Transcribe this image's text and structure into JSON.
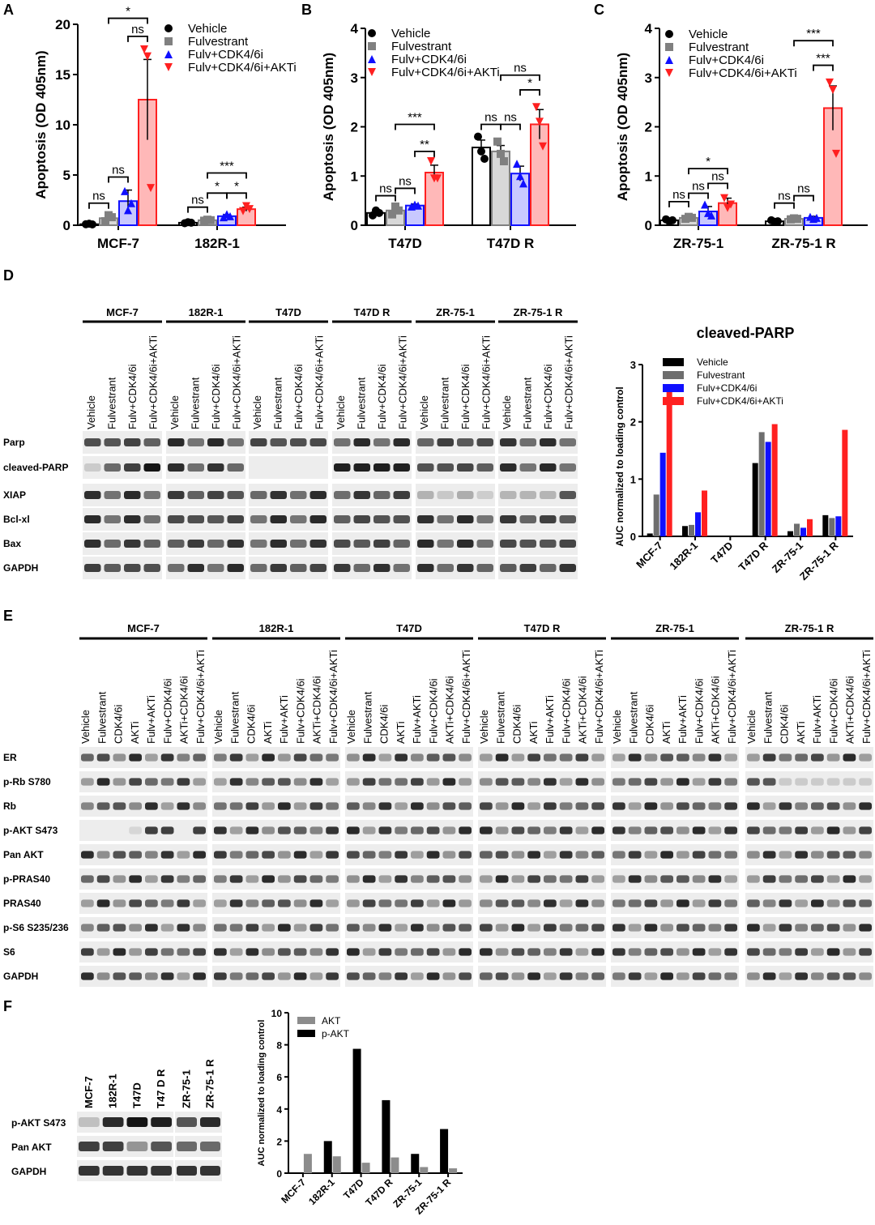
{
  "colors": {
    "vehicle": "#000000",
    "fulvestrant": "#808080",
    "cdk": "#1010ff",
    "akti": "#ff2020",
    "vehicle_fill": "#ffffff",
    "fulv_fill": "#d8d8d8",
    "cdk_fill": "#c8c8ff",
    "akti_fill": "#ffb8b8",
    "akt_gray": "#8c8c8c",
    "pakt_black": "#000000"
  },
  "panel_letters": {
    "A": "A",
    "B": "B",
    "C": "C",
    "D": "D",
    "E": "E",
    "F": "F"
  },
  "chart_data": [
    {
      "id": "A",
      "type": "bar",
      "ylabel": "Apoptosis (OD 405nm)",
      "ylim": [
        0,
        20
      ],
      "yticks": [
        0,
        5,
        10,
        15,
        20
      ],
      "categories": [
        "MCF-7",
        "182R-1"
      ],
      "legend": [
        "Vehicle",
        "Fulvestrant",
        "Fulv+CDK4/6i",
        "Fulv+CDK4/6i+AKTi"
      ],
      "series": [
        {
          "name": "Vehicle",
          "values": [
            0.1,
            0.25
          ],
          "err": [
            0.05,
            0.05
          ],
          "points": [
            [
              0.1,
              0.15,
              0.08
            ],
            [
              0.2,
              0.3,
              0.25
            ]
          ]
        },
        {
          "name": "Fulvestrant",
          "values": [
            0.7,
            0.5
          ],
          "err": [
            0.3,
            0.05
          ],
          "points": [
            [
              0.4,
              1.0,
              0.8
            ],
            [
              0.45,
              0.55,
              0.5
            ]
          ]
        },
        {
          "name": "Fulv+CDK4/6i",
          "values": [
            2.4,
            0.9
          ],
          "err": [
            1.1,
            0.15
          ],
          "points": [
            [
              3.4,
              1.5,
              2.2
            ],
            [
              0.8,
              1.1,
              0.9
            ]
          ]
        },
        {
          "name": "Fulv+CDK4/6i+AKTi",
          "values": [
            12.5,
            1.6
          ],
          "err": [
            4.0,
            0.2
          ],
          "points": [
            [
              17.5,
              16.8,
              3.7
            ],
            [
              1.4,
              1.9,
              1.6
            ]
          ]
        }
      ],
      "annotations": [
        {
          "group": 0,
          "from": 0,
          "to": 1,
          "label": "ns",
          "y": 2.2
        },
        {
          "group": 0,
          "from": 1,
          "to": 2,
          "label": "ns",
          "y": 4.8
        },
        {
          "group": 0,
          "from": 2,
          "to": 3,
          "label": "ns",
          "y": 18.8
        },
        {
          "group": 0,
          "from": 1,
          "to": 3,
          "label": "*",
          "y": 20.6
        },
        {
          "group": 1,
          "from": 0,
          "to": 1,
          "label": "ns",
          "y": 1.8
        },
        {
          "group": 1,
          "from": 1,
          "to": 2,
          "label": "*",
          "y": 3.2
        },
        {
          "group": 1,
          "from": 2,
          "to": 3,
          "label": "*",
          "y": 3.2
        },
        {
          "group": 1,
          "from": 1,
          "to": 3,
          "label": "***",
          "y": 5.2
        }
      ]
    },
    {
      "id": "B",
      "type": "bar",
      "ylabel": "Apoptosis (OD 405nm)",
      "ylim": [
        0,
        4
      ],
      "yticks": [
        0,
        1,
        2,
        3,
        4
      ],
      "categories": [
        "T47D",
        "T47D R"
      ],
      "legend": [
        "Vehicle",
        "Fulvestrant",
        "Fulv+CDK4/6i",
        "Fulv+CDK4/6i+AKTi"
      ],
      "series": [
        {
          "name": "Vehicle",
          "values": [
            0.25,
            1.58
          ],
          "err": [
            0.05,
            0.15
          ],
          "points": [
            [
              0.2,
              0.3,
              0.25
            ],
            [
              1.8,
              1.5,
              1.35
            ]
          ]
        },
        {
          "name": "Fulvestrant",
          "values": [
            0.3,
            1.5
          ],
          "err": [
            0.08,
            0.12
          ],
          "points": [
            [
              0.22,
              0.38,
              0.3
            ],
            [
              1.7,
              1.45,
              1.3
            ]
          ]
        },
        {
          "name": "Fulv+CDK4/6i",
          "values": [
            0.4,
            1.05
          ],
          "err": [
            0.03,
            0.15
          ],
          "points": [
            [
              0.38,
              0.42,
              0.4
            ],
            [
              1.25,
              1.0,
              0.85
            ]
          ]
        },
        {
          "name": "Fulv+CDK4/6i+AKTi",
          "values": [
            1.07,
            2.05
          ],
          "err": [
            0.15,
            0.3
          ],
          "points": [
            [
              1.3,
              0.95,
              0.95
            ],
            [
              2.4,
              2.1,
              1.6
            ]
          ]
        }
      ],
      "annotations": [
        {
          "group": 0,
          "from": 0,
          "to": 1,
          "label": "ns",
          "y": 0.6
        },
        {
          "group": 0,
          "from": 1,
          "to": 2,
          "label": "ns",
          "y": 0.75
        },
        {
          "group": 0,
          "from": 2,
          "to": 3,
          "label": "**",
          "y": 1.5
        },
        {
          "group": 0,
          "from": 1,
          "to": 3,
          "label": "***",
          "y": 2.05
        },
        {
          "group": 1,
          "from": 0,
          "to": 1,
          "label": "ns",
          "y": 2.05
        },
        {
          "group": 1,
          "from": 1,
          "to": 2,
          "label": "ns",
          "y": 2.05
        },
        {
          "group": 1,
          "from": 2,
          "to": 3,
          "label": "*",
          "y": 2.75
        },
        {
          "group": 1,
          "from": 1,
          "to": 3,
          "label": "ns",
          "y": 3.05
        }
      ]
    },
    {
      "id": "C",
      "type": "bar",
      "ylabel": "Apoptosis (OD 405nm)",
      "ylim": [
        0,
        4
      ],
      "yticks": [
        0,
        1,
        2,
        3,
        4
      ],
      "categories": [
        "ZR-75-1",
        "ZR-75-1 R"
      ],
      "legend": [
        "Vehicle",
        "Fulvestrant",
        "Fulv+CDK4/6i",
        "Fulv+CDK4/6i+AKTi"
      ],
      "series": [
        {
          "name": "Vehicle",
          "values": [
            0.1,
            0.08
          ],
          "err": [
            0.03,
            0.02
          ],
          "points": [
            [
              0.12,
              0.08,
              0.1
            ],
            [
              0.1,
              0.07,
              0.08
            ]
          ]
        },
        {
          "name": "Fulvestrant",
          "values": [
            0.15,
            0.13
          ],
          "err": [
            0.03,
            0.02
          ],
          "points": [
            [
              0.13,
              0.17,
              0.15
            ],
            [
              0.12,
              0.14,
              0.13
            ]
          ]
        },
        {
          "name": "Fulv+CDK4/6i",
          "values": [
            0.28,
            0.15
          ],
          "err": [
            0.1,
            0.03
          ],
          "points": [
            [
              0.42,
              0.25,
              0.2
            ],
            [
              0.17,
              0.13,
              0.15
            ]
          ]
        },
        {
          "name": "Fulv+CDK4/6i+AKTi",
          "values": [
            0.45,
            2.38
          ],
          "err": [
            0.1,
            0.45
          ],
          "points": [
            [
              0.55,
              0.35,
              0.42
            ],
            [
              2.9,
              2.75,
              1.45
            ]
          ]
        }
      ],
      "annotations": [
        {
          "group": 0,
          "from": 0,
          "to": 1,
          "label": "ns",
          "y": 0.48
        },
        {
          "group": 0,
          "from": 1,
          "to": 2,
          "label": "ns",
          "y": 0.65
        },
        {
          "group": 0,
          "from": 2,
          "to": 3,
          "label": "ns",
          "y": 0.85
        },
        {
          "group": 0,
          "from": 1,
          "to": 3,
          "label": "*",
          "y": 1.15
        },
        {
          "group": 1,
          "from": 0,
          "to": 1,
          "label": "ns",
          "y": 0.45
        },
        {
          "group": 1,
          "from": 1,
          "to": 2,
          "label": "ns",
          "y": 0.6
        },
        {
          "group": 1,
          "from": 2,
          "to": 3,
          "label": "***",
          "y": 3.25
        },
        {
          "group": 1,
          "from": 1,
          "to": 3,
          "label": "***",
          "y": 3.75
        }
      ]
    },
    {
      "id": "D-chart",
      "type": "bar",
      "title": "cleaved-PARP",
      "ylabel": "AUC normalized to loading control",
      "ylim": [
        0,
        3
      ],
      "yticks": [
        0,
        1,
        2,
        3
      ],
      "categories": [
        "MCF-7",
        "182R-1",
        "T47D",
        "T47D R",
        "ZR-75-1",
        "ZR-75-1 R"
      ],
      "series": [
        {
          "name": "Vehicle",
          "values": [
            0.05,
            0.18,
            0,
            1.28,
            0.09,
            0.37
          ]
        },
        {
          "name": "Fulvestrant",
          "values": [
            0.73,
            0.2,
            0,
            1.82,
            0.22,
            0.32
          ]
        },
        {
          "name": "Fulv+CDK4/6i",
          "values": [
            1.46,
            0.42,
            0,
            1.65,
            0.15,
            0.35
          ]
        },
        {
          "name": "Fulv+CDK4/6i+AKTi",
          "values": [
            2.61,
            0.8,
            0,
            1.96,
            0.3,
            1.86
          ]
        }
      ]
    },
    {
      "id": "F-chart",
      "type": "bar",
      "ylabel": "AUC normalized to loading control",
      "ylim": [
        0,
        10
      ],
      "yticks": [
        0,
        2,
        4,
        6,
        8,
        10
      ],
      "categories": [
        "MCF-7",
        "182R-1",
        "T47D",
        "T47D R",
        "ZR-75-1",
        "ZR-75-1 R"
      ],
      "series": [
        {
          "name": "p-AKT",
          "values": [
            0,
            2.0,
            7.75,
            4.55,
            1.2,
            2.75
          ]
        },
        {
          "name": "AKT",
          "values": [
            1.2,
            1.05,
            0.65,
            0.98,
            0.38,
            0.3
          ]
        }
      ],
      "legend": [
        "AKT",
        "p-AKT"
      ]
    }
  ],
  "blot_D": {
    "cell_lines": [
      "MCF-7",
      "182R-1",
      "T47D",
      "T47D R",
      "ZR-75-1",
      "ZR-75-1 R"
    ],
    "lanes": [
      "Vehicle",
      "Fulvestrant",
      "Fulv+CDK4/6i",
      "Fulv+CDK4/6i+AKTi"
    ],
    "rows": [
      "Parp",
      "cleaved-PARP",
      "XIAP",
      "Bcl-xl",
      "Bax",
      "GAPDH"
    ]
  },
  "blot_E": {
    "cell_lines": [
      "MCF-7",
      "182R-1",
      "T47D",
      "T47D R",
      "ZR-75-1",
      "ZR-75-1 R"
    ],
    "lanes": [
      "Vehicle",
      "Fulvestrant",
      "CDK4/6i",
      "AKTi",
      "Fulv+AKTi",
      "Fulv+CDK4/6i",
      "AKTi+CDK4/6i",
      "Fulv+CDK4/6i+AKTi"
    ],
    "rows": [
      "ER",
      "p-Rb S780",
      "Rb",
      "p-AKT S473",
      "Pan AKT",
      "p-PRAS40",
      "PRAS40",
      "p-S6 S235/236",
      "S6",
      "GAPDH"
    ]
  },
  "blot_F": {
    "lanes": [
      "MCF-7",
      "182R-1",
      "T47D",
      "T47 D R",
      "ZR-75-1",
      "ZR-75-1 R"
    ],
    "rows": [
      "p-AKT S473",
      "Pan AKT",
      "GAPDH"
    ]
  }
}
